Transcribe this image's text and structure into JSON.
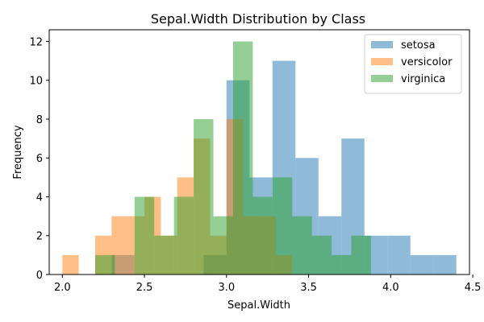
{
  "chart_data": {
    "type": "bar",
    "title": "Sepal.Width Distribution by Class",
    "xlabel": "Sepal.Width",
    "ylabel": "Frequency",
    "xlim": [
      1.92,
      4.48
    ],
    "ylim": [
      0,
      12.6
    ],
    "xticks": [
      2.0,
      2.5,
      3.0,
      3.5,
      4.0,
      4.5
    ],
    "xtick_labels": [
      "2.0",
      "2.5",
      "3.0",
      "3.5",
      "4.0",
      "4.5"
    ],
    "yticks": [
      0,
      2,
      4,
      6,
      8,
      10,
      12
    ],
    "ytick_labels": [
      "0",
      "2",
      "4",
      "6",
      "8",
      "10",
      "12"
    ],
    "grid": false,
    "legend_position": "top-right",
    "series": [
      {
        "name": "setosa",
        "color": "#1f77b4",
        "bins": [
          {
            "x0": 2.3,
            "x1": 2.44,
            "count": 1
          },
          {
            "x0": 2.44,
            "x1": 2.58,
            "count": 0
          },
          {
            "x0": 2.58,
            "x1": 2.72,
            "count": 0
          },
          {
            "x0": 2.72,
            "x1": 2.86,
            "count": 0
          },
          {
            "x0": 2.86,
            "x1": 3.0,
            "count": 1
          },
          {
            "x0": 3.0,
            "x1": 3.14,
            "count": 10
          },
          {
            "x0": 3.14,
            "x1": 3.28,
            "count": 5
          },
          {
            "x0": 3.28,
            "x1": 3.42,
            "count": 11
          },
          {
            "x0": 3.42,
            "x1": 3.56,
            "count": 6
          },
          {
            "x0": 3.56,
            "x1": 3.7,
            "count": 3
          },
          {
            "x0": 3.7,
            "x1": 3.84,
            "count": 7
          },
          {
            "x0": 3.84,
            "x1": 3.98,
            "count": 2
          },
          {
            "x0": 3.98,
            "x1": 4.12,
            "count": 2
          },
          {
            "x0": 4.12,
            "x1": 4.26,
            "count": 1
          },
          {
            "x0": 4.26,
            "x1": 4.4,
            "count": 1
          }
        ]
      },
      {
        "name": "versicolor",
        "color": "#ff7f0e",
        "bins": [
          {
            "x0": 2.0,
            "x1": 2.1,
            "count": 1
          },
          {
            "x0": 2.1,
            "x1": 2.2,
            "count": 0
          },
          {
            "x0": 2.2,
            "x1": 2.3,
            "count": 2
          },
          {
            "x0": 2.3,
            "x1": 2.4,
            "count": 3
          },
          {
            "x0": 2.4,
            "x1": 2.5,
            "count": 3
          },
          {
            "x0": 2.5,
            "x1": 2.6,
            "count": 4
          },
          {
            "x0": 2.6,
            "x1": 2.7,
            "count": 2
          },
          {
            "x0": 2.7,
            "x1": 2.8,
            "count": 5
          },
          {
            "x0": 2.8,
            "x1": 2.9,
            "count": 7
          },
          {
            "x0": 2.9,
            "x1": 3.0,
            "count": 2
          },
          {
            "x0": 3.0,
            "x1": 3.1,
            "count": 8
          },
          {
            "x0": 3.1,
            "x1": 3.2,
            "count": 3
          },
          {
            "x0": 3.2,
            "x1": 3.3,
            "count": 3
          },
          {
            "x0": 3.3,
            "x1": 3.4,
            "count": 1
          }
        ]
      },
      {
        "name": "virginica",
        "color": "#2ca02c",
        "bins": [
          {
            "x0": 2.2,
            "x1": 2.32,
            "count": 1
          },
          {
            "x0": 2.32,
            "x1": 2.44,
            "count": 0
          },
          {
            "x0": 2.44,
            "x1": 2.56,
            "count": 4
          },
          {
            "x0": 2.56,
            "x1": 2.68,
            "count": 2
          },
          {
            "x0": 2.68,
            "x1": 2.8,
            "count": 4
          },
          {
            "x0": 2.8,
            "x1": 2.92,
            "count": 8
          },
          {
            "x0": 2.92,
            "x1": 3.04,
            "count": 3
          },
          {
            "x0": 3.04,
            "x1": 3.16,
            "count": 12
          },
          {
            "x0": 3.16,
            "x1": 3.28,
            "count": 4
          },
          {
            "x0": 3.28,
            "x1": 3.4,
            "count": 5
          },
          {
            "x0": 3.4,
            "x1": 3.52,
            "count": 3
          },
          {
            "x0": 3.52,
            "x1": 3.64,
            "count": 2
          },
          {
            "x0": 3.64,
            "x1": 3.76,
            "count": 1
          },
          {
            "x0": 3.76,
            "x1": 3.88,
            "count": 2
          }
        ]
      }
    ]
  }
}
